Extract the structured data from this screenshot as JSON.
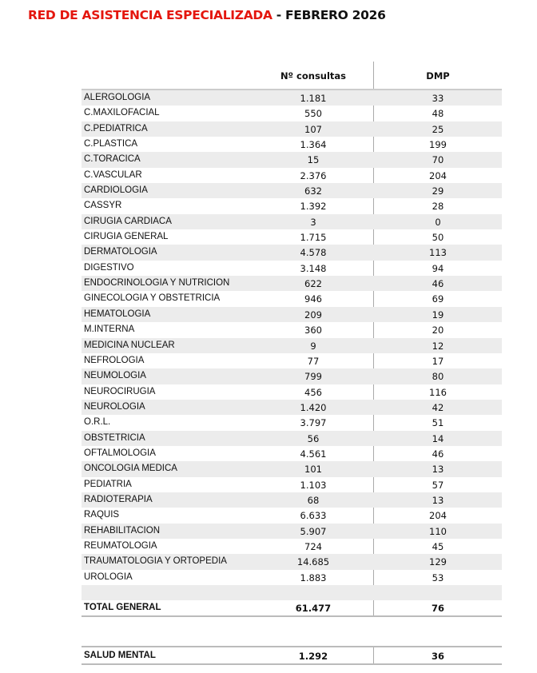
{
  "title": {
    "main": "RED DE ASISTENCIA ESPECIALIZADA",
    "period": " - FEBRERO 2026"
  },
  "headers": {
    "consultas": "Nº consultas",
    "dmp": "DMP"
  },
  "rows": [
    [
      "ALERGOLOGIA",
      "1.181",
      "33"
    ],
    [
      "C.MAXILOFACIAL",
      "550",
      "48"
    ],
    [
      "C.PEDIATRICA",
      "107",
      "25"
    ],
    [
      "C.PLASTICA",
      "1.364",
      "199"
    ],
    [
      "C.TORACICA",
      "15",
      "70"
    ],
    [
      "C.VASCULAR",
      "2.376",
      "204"
    ],
    [
      "CARDIOLOGIA",
      "632",
      "29"
    ],
    [
      "CASSYR",
      "1.392",
      "28"
    ],
    [
      "CIRUGIA CARDIACA",
      "3",
      "0"
    ],
    [
      "CIRUGIA GENERAL",
      "1.715",
      "50"
    ],
    [
      "DERMATOLOGIA",
      "4.578",
      "113"
    ],
    [
      "DIGESTIVO",
      "3.148",
      "94"
    ],
    [
      "ENDOCRINOLOGIA Y NUTRICION",
      "622",
      "46"
    ],
    [
      "GINECOLOGIA Y OBSTETRICIA",
      "946",
      "69"
    ],
    [
      "HEMATOLOGIA",
      "209",
      "19"
    ],
    [
      "M.INTERNA",
      "360",
      "20"
    ],
    [
      "MEDICINA NUCLEAR",
      "9",
      "12"
    ],
    [
      "NEFROLOGIA",
      "77",
      "17"
    ],
    [
      "NEUMOLOGIA",
      "799",
      "80"
    ],
    [
      "NEUROCIRUGIA",
      "456",
      "116"
    ],
    [
      "NEUROLOGIA",
      "1.420",
      "42"
    ],
    [
      "O.R.L.",
      "3.797",
      "51"
    ],
    [
      "OBSTETRICIA",
      "56",
      "14"
    ],
    [
      "OFTALMOLOGIA",
      "4.561",
      "46"
    ],
    [
      "ONCOLOGIA MEDICA",
      "101",
      "13"
    ],
    [
      "PEDIATRIA",
      "1.103",
      "57"
    ],
    [
      "RADIOTERAPIA",
      "68",
      "13"
    ],
    [
      "RAQUIS",
      "6.633",
      "204"
    ],
    [
      "REHABILITACION",
      "5.907",
      "110"
    ],
    [
      "REUMATOLOGIA",
      "724",
      "45"
    ],
    [
      "TRAUMATOLOGIA Y ORTOPEDIA",
      "14.685",
      "129"
    ],
    [
      "UROLOGIA",
      "1.883",
      "53"
    ]
  ],
  "total": {
    "label": "TOTAL GENERAL",
    "consultas": "61.477",
    "dmp": "76"
  },
  "salud_mental": {
    "label": "SALUD MENTAL",
    "consultas": "1.292",
    "dmp": "36"
  }
}
